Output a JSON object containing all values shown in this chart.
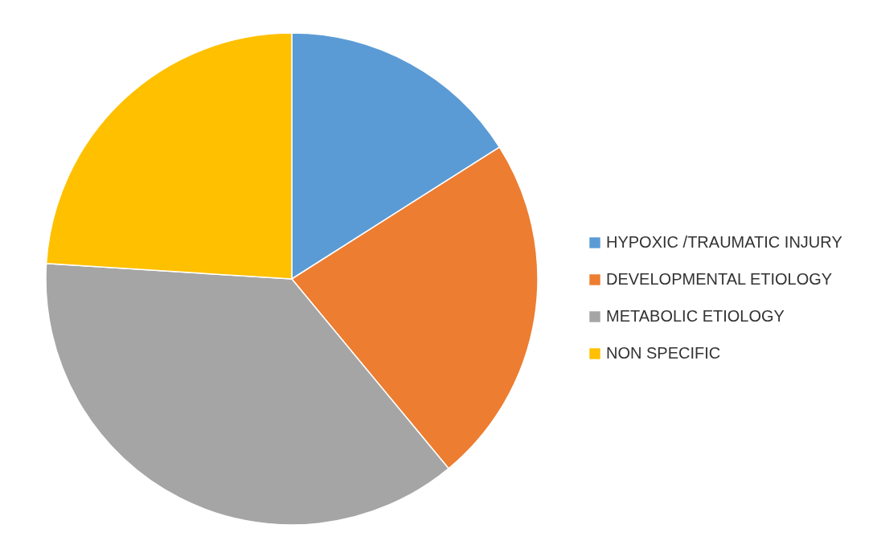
{
  "chart_data": {
    "type": "pie",
    "categories": [
      "HYPOXIC /TRAUMATIC INJURY",
      "DEVELOPMENTAL ETIOLOGY",
      "METABOLIC  ETIOLOGY",
      "NON SPECIFIC"
    ],
    "values": [
      16,
      23,
      37,
      24
    ],
    "colors": [
      "#5b9bd5",
      "#ed7d31",
      "#a5a5a5",
      "#ffc000"
    ],
    "legend": "right"
  }
}
